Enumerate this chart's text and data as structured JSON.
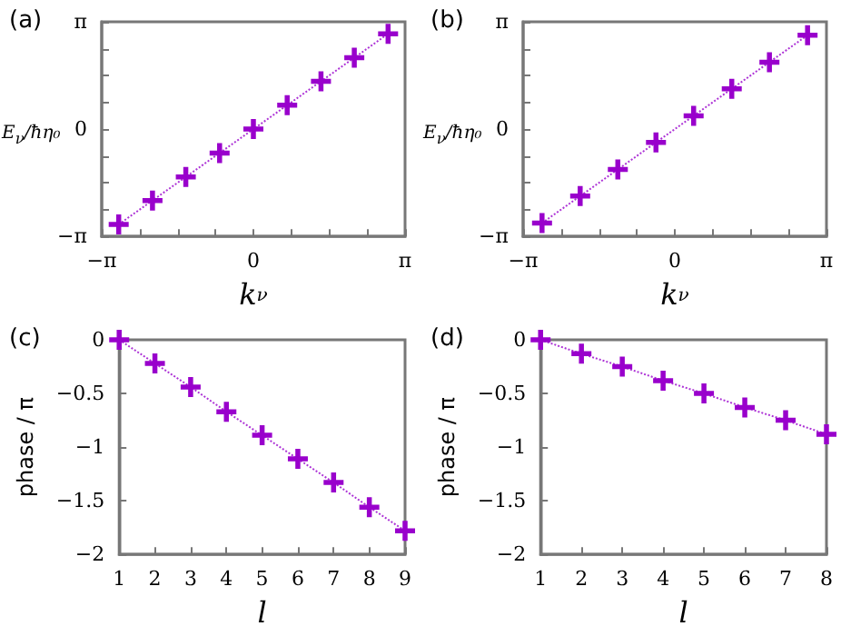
{
  "chart_data": [
    {
      "type": "line",
      "title": "(a)",
      "xlabel": "k$_{ν}$",
      "ylabel": "E$_{ν}$/ħη₀",
      "x": [
        -2.79,
        -2.09,
        -1.4,
        -0.7,
        0,
        0.7,
        1.4,
        2.09,
        2.79
      ],
      "series": [
        {
          "color": "#9900cc",
          "values": [
            -2.79,
            -2.09,
            -1.4,
            -0.7,
            0,
            0.7,
            1.4,
            2.09,
            2.79
          ]
        }
      ],
      "xlim": [
        -3.1416,
        3.1416
      ],
      "ylim": [
        -3.1416,
        3.1416
      ],
      "xticks": [
        {
          "value": -3.1416,
          "label": "−π"
        },
        {
          "value": -2.3562,
          "label": null
        },
        {
          "value": -1.5708,
          "label": null
        },
        {
          "value": -0.7854,
          "label": null
        },
        0,
        {
          "value": 0.7854,
          "label": null
        },
        {
          "value": 1.5708,
          "label": null
        },
        {
          "value": 2.3562,
          "label": null
        },
        {
          "value": 3.1416,
          "label": "π"
        }
      ],
      "yticks": [
        {
          "value": -3.1416,
          "label": "−π"
        },
        {
          "value": -2.3562,
          "label": null
        },
        {
          "value": -1.5708,
          "label": null
        },
        {
          "value": -0.7854,
          "label": null
        },
        0,
        {
          "value": 0.7854,
          "label": null
        },
        {
          "value": 1.5708,
          "label": null
        },
        {
          "value": 2.3562,
          "label": null
        },
        {
          "value": 3.1416,
          "label": "π"
        }
      ],
      "marker": "cross",
      "line_style": "dotted",
      "grid": false
    },
    {
      "type": "line",
      "title": "(b)",
      "xlabel": "k$_{ν}$",
      "ylabel": "E$_{ν}$/ħη₀",
      "x": [
        -2.75,
        -1.96,
        -1.18,
        -0.39,
        0.39,
        1.18,
        1.96,
        2.75
      ],
      "series": [
        {
          "color": "#9900cc",
          "values": [
            -2.75,
            -1.96,
            -1.18,
            -0.39,
            0.39,
            1.18,
            1.96,
            2.75
          ]
        }
      ],
      "xlim": [
        -3.1416,
        3.1416
      ],
      "ylim": [
        -3.1416,
        3.1416
      ],
      "xticks": [
        {
          "value": -3.1416,
          "label": "−π"
        },
        {
          "value": -2.3562,
          "label": null
        },
        {
          "value": -1.5708,
          "label": null
        },
        {
          "value": -0.7854,
          "label": null
        },
        0,
        {
          "value": 0.7854,
          "label": null
        },
        {
          "value": 1.5708,
          "label": null
        },
        {
          "value": 2.3562,
          "label": null
        },
        {
          "value": 3.1416,
          "label": "π"
        }
      ],
      "yticks": [
        {
          "value": -3.1416,
          "label": "−π"
        },
        {
          "value": -2.3562,
          "label": null
        },
        {
          "value": -1.5708,
          "label": null
        },
        {
          "value": -0.7854,
          "label": null
        },
        0,
        {
          "value": 0.7854,
          "label": null
        },
        {
          "value": 1.5708,
          "label": null
        },
        {
          "value": 2.3562,
          "label": null
        },
        {
          "value": 3.1416,
          "label": "π"
        }
      ],
      "marker": "cross",
      "line_style": "dotted",
      "grid": false
    },
    {
      "type": "line",
      "title": "(c)",
      "xlabel": "l",
      "ylabel": "phase / π",
      "x": [
        1,
        2,
        3,
        4,
        5,
        6,
        7,
        8,
        9
      ],
      "series": [
        {
          "color": "#9900cc",
          "values": [
            0,
            -0.22,
            -0.44,
            -0.67,
            -0.89,
            -1.11,
            -1.33,
            -1.56,
            -1.78
          ]
        }
      ],
      "xlim": [
        1,
        9
      ],
      "ylim": [
        -2,
        0
      ],
      "xticks": [
        1,
        2,
        3,
        4,
        5,
        6,
        7,
        8,
        9
      ],
      "yticks": [
        -2,
        -1.5,
        -1,
        -0.5,
        0
      ],
      "marker": "cross",
      "line_style": "dotted",
      "grid": false
    },
    {
      "type": "line",
      "title": "(d)",
      "xlabel": "l",
      "ylabel": "phase / π",
      "x": [
        1,
        2,
        3,
        4,
        5,
        6,
        7,
        8
      ],
      "series": [
        {
          "color": "#9900cc",
          "values": [
            0,
            -0.13,
            -0.25,
            -0.38,
            -0.5,
            -0.63,
            -0.75,
            -0.88
          ]
        }
      ],
      "xlim": [
        1,
        8
      ],
      "ylim": [
        -2,
        0
      ],
      "xticks": [
        1,
        2,
        3,
        4,
        5,
        6,
        7,
        8
      ],
      "yticks": [
        -2,
        -1.5,
        -1,
        -0.5,
        0
      ],
      "marker": "cross",
      "line_style": "dotted",
      "grid": false
    }
  ]
}
